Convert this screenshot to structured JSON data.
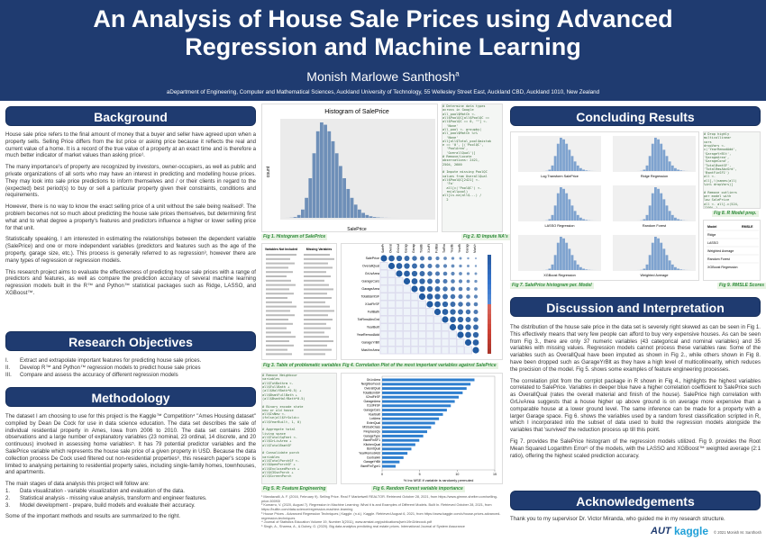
{
  "header": {
    "title_line1": "An Analysis of House Sale Prices using Advanced",
    "title_line2": "Regression and Machine Learning",
    "author": "Monish Marlowe Santhosh",
    "author_sup": "a",
    "affiliation": "aDepartment of Engineering, Computer and Mathematical Sciences,  Auckland University of Technology, 55 Wellesley Street East, Auckland CBD, Auckland 1010, New Zealand"
  },
  "background": {
    "heading": "Background",
    "paragraphs": [
      "House sale price refers to the final amount of money that a buyer and seller have agreed upon when a property sells. Selling Price differs from the list price or asking price because it reflects the real and current value of a home. It is a record of the true value of a property at an exact time and is therefore a much better indicator of market values than asking price¹.",
      "The many importance's of property are recognized by investors, owner-occupiers, as well as public and private organizations of all sorts who may have an interest in predicting and modelling house prices. They may look into sale price predictions to inform themselves and / or their clients in regard to the (expected) best period(s) to buy or sell a particular property given their constraints, conditions and requirements.",
      "However, there is no way to know the exact selling price of a unit without the sale being realised². The problem becomes not so much about predicting the house sale prices themselves, but determining first what and to what degree a property's features and predictors influence a higher or lower selling price for that unit.",
      "Statistically speaking, I am interested in estimating the relationships between the dependent variable (SalePrice) and one or more independent variables (predictors and features such as the age of the property, garage size, etc.). This process is generally referred to as regression³, however there are many types of regression or regression models.",
      "This research project aims to evaluate the effectiveness of predicting house sale prices with a range of predictors and features, as well as compare the prediction accuracy of several machine learning regression models built in the R™ and Python™ statistical packages such as Ridge, LASSO, and XGBoost™."
    ]
  },
  "objectives": {
    "heading": "Research Objectives",
    "items": [
      {
        "number": "I.",
        "text": "Extract and extrapolate important features for predicting house sale prices."
      },
      {
        "number": "II.",
        "text": "Develop R™ and Python™ regression models to predict house sale prices"
      },
      {
        "number": "III.",
        "text": "Compare and assess the accuracy of different regression models"
      }
    ]
  },
  "methodology": {
    "heading": "Methodology",
    "paragraph": "The dataset I am choosing to use for this project is the Kaggle™ Competition⁴ \"Ames Housing dataset\" compiled by Dean De Cock for use in data science education. The data set describes the sale of individual residential property in Ames, Iowa from 2006 to 2010. The data set contains 2930 observations and a large number of explanatory variables (23 nominal, 23 ordinal, 14 discrete, and 20 continuous) involved in assessing home variables⁵. It has 79 potential predictor variables and the SalePrice variable which represents the house sale price of a given property in USD. Because the data collection process De Cock used filtered out non-residential properties⁶, this research paper's scope is limited to analysing pertaining to residential property sales, including single-family homes, townhouses, and apartments.",
    "steps_intro": "The main stages of data analysis this project will follow are:",
    "steps": [
      {
        "number": "1.",
        "text": "Data visualization - variable visualization and evaluation of the data."
      },
      {
        "number": "2.",
        "text": "Statistical analysis - missing value analysis, transform and engineer features."
      },
      {
        "number": "3.",
        "text": "Model development - prepare, build models and evaluate their accuracy."
      }
    ],
    "closing": "Some of the important methods and results are summarized to the right."
  },
  "figures": {
    "fig1": {
      "caption": "Fig 1. Histogram of SalePrice",
      "title": "Histogram of SalePrice",
      "ylabel": "count",
      "xlabel": "SalePrice"
    },
    "fig2": {
      "caption": "Fig 2. ID Impute NA's",
      "code": "# Determine data types\nacross in Google\nall_pool$MatCh <-\nall$PoolQC[all$PoolQC ==\nall$PoolQC == 0, \"\"] <-\n  'None'\nall_pool <- groupby(\nall_pool$MatCh %>%\n  'None'\nall[all$Total_pool$mistak\ne == '0', ]('PoolQC',\n  'PoolArea',\n  'OverallQual')]\n# Remove/Locate\nobservations: 2421,\n2504, 2600\n\n# Impute missing PoolQC\nvalues from OverallQual\nall$PoolQC[2421] <-\n  'Fa'\n  all[c('PoolQC') <-\n  rm(allpool)\nall[is.na(all$...) /\n  2"
    },
    "fig3": {
      "caption": "Fig 3. Table of problematic variables",
      "headers": [
        "Variables Not Included",
        "Missing Variables"
      ]
    },
    "fig4": {
      "caption": "Fig 4. Correlation Plot of the most important variables against SalePrice",
      "variables": [
        "SalePrice",
        "OverallQual",
        "GrLivArea",
        "GarageCars",
        "GarageArea",
        "TotalBsmtSF",
        "X1stFlrSF",
        "FullBath",
        "TotRmsAbvGrd",
        "YearBuilt",
        "YearRemodAdd",
        "GarageYrBlt",
        "MasVnrArea"
      ]
    },
    "fig5": {
      "caption": "Fig 5. R: Feature Engineering",
      "code": "# Remove Neighbour\nvariables\nall$TotBathrm <-\nall$FullBath +\n(all$HalfBath*0.5) +\nall$BsmtFullBath +\n(all$BsmtHalfBath*0.5)\n\n# Binary encode state\nnew or old house\nall$IsNew <-\nifelse(all$YrSold==\nall$YearBuilt, 1, 0)\n\n# Aggregate total\nliving space\nall$TotalSqFeet <-\nall$GrLivArea +\nall$TotalBsmtSF\n\n# Consolidate porch\nvariables\nall$TotalPorchSF <-\nall$OpenPorchSF +\nall$EnclosedPorch +\nall$X3SsnPorch +\nall$ScreenPorch"
    },
    "fig6": {
      "caption": "Fig 6. Random Forest variable importance",
      "variables": [
        "GrLivArea",
        "Neighborhood",
        "OverallQual",
        "TotalBsmtSF",
        "X2ndFlrSF",
        "GarageArea",
        "X1stFlrSF",
        "GarageCars",
        "YearBuilt",
        "LotArea",
        "ExterQual",
        "MSSubClass",
        "FireplaceQu",
        "GarageType",
        "BsmtFinSF1",
        "KitchenQual",
        "BsmtQual",
        "YearRemodAdd",
        "CentralAir",
        "GarageYrBlt",
        "BsmtFinType1"
      ],
      "xlabel": "% Inc MSE if variable is randomly permuted",
      "xticks": [
        0,
        5,
        10,
        15
      ]
    },
    "fig7": {
      "caption": "Fig 7. SalePrice histogram per. Model",
      "panels": [
        "Log Transform SalePrice",
        "Ridge Regression",
        "LASSO Regression",
        "Random Forest",
        "XGBoost Regression",
        "Weighted Average"
      ]
    },
    "fig8": {
      "caption": "Fig 8. R Model prep.",
      "code": "# Drop highly\nmulticollinear\nvars\ndropVars <-\nc('YearRemodAdd',\n'GarageYrBlt',\n'GarageArea',\n'GarageCond',\n'TotalBsmtSF',\n'TotalRmsAbvGrd',\n'BsmtFinSF1')\nall <-\nall[,!(names(all)\n%in% dropVars)]\n\n# Remove outliers\nper model with\nlow SalePrice\nall <- all[-c(524,\n1299),]\n\n# Transform\nnumeric-categorical\nvars: skewness,\nnormalize, dummies,\nand variance zero..."
    },
    "fig9": {
      "caption": "Fig 9. RMSLE Scores",
      "headers": [
        "Model",
        "RMSLE"
      ],
      "models": [
        "Ridge",
        "LASSO",
        "Weighted Average",
        "Random Forest",
        "XGBoost Regression"
      ]
    }
  },
  "footnotes": [
    "¹ Mandavalli, A. F. (2016, February 9). Selling Price. Real F Marketwell REALTOR. Retrieved October 28, 2021, from https://www.gimme-shelter.com/selling-price-50093/",
    "² Kumarru, V. (2020, August 7). Regression in Machine Learning: What it is and Examples of Different Models. Built In. Retrieved October 28, 2021, from https://builtin.com/data-science/regression-machine-learning",
    "³ House Prices - Advanced Regression Techniques | Kaggle. (n.d.). Kaggle. Retrieved August 6, 2021, from https://www.kaggle.com/c/house-prices-advanced-regression-techniques",
    "⁴ Journal of Statistics Education Volume 19, Number 3(2011), www.amstat.org/publications/jse/v19n3/decock.pdf",
    "⁵ Singh, A., Sharma, A., & Dubey, G. (2020). Big data analytics predicting real estate prices. International Journal of System Assurance"
  ],
  "results": {
    "heading": "Concluding Results"
  },
  "discussion": {
    "heading": "Discussion and Interpretation",
    "paragraphs": [
      "The distribution of the house sale price in the data set is severely right skewed as can be seen in Fig 1. This effectively means that very few people can afford to buy very expensive houses. As can be seen from Fig 3., there are only 37 numeric variables (43 categorical and nominal variables) and 35 variables with missing values. Regression models cannot process these variables raw. Some of the variables such as OverallQual have been imputed as shown in Fig 2., while others shown in Fig 8. have been dropped such as GarageYrBlt as they have a high level of multicollinearity, which reduces the precision of the model. Fig 5. shows some examples of feature engineering processes.",
      "The correlation plot from the corrplot package in R shown in Fig 4., highlights the highest variables correlated to SalePrice. Variables in deeper blue have a higher correlation coefficient to SalePrice such as OverallQual (rates the overall material and finish of the house). SalePrice high correlation with GrLivArea suggests that a house higher up above ground is on average more expensive than a comparable house at a lower ground level. The same inference can be made for a property with a larger Garage space. Fig 6. shows the variables used by a random forest classification scripted in R, which I incorporated into the subset of data used to build the regression models alongside the variables that 'survived' the reduction process up till this point.",
      "Fig 7. provides the SalePrice histogram of the regression models utilized. Fig 9. provides the Root Mean Squared Logarithm Error⁶ of the models, with the LASSO and XGBoost™ weighted average (2:1 ratio), offering the highest scaled prediction accuracy."
    ]
  },
  "acknowledgements": {
    "heading": "Acknowledgements",
    "text": "Thank you to my supervisor Dr. Victor Miranda, who guided me in my research structure."
  },
  "footer": {
    "logo1": "AUT",
    "logo2": "kaggle",
    "copyright": "© 2021 Monish M. Santhosh"
  }
}
